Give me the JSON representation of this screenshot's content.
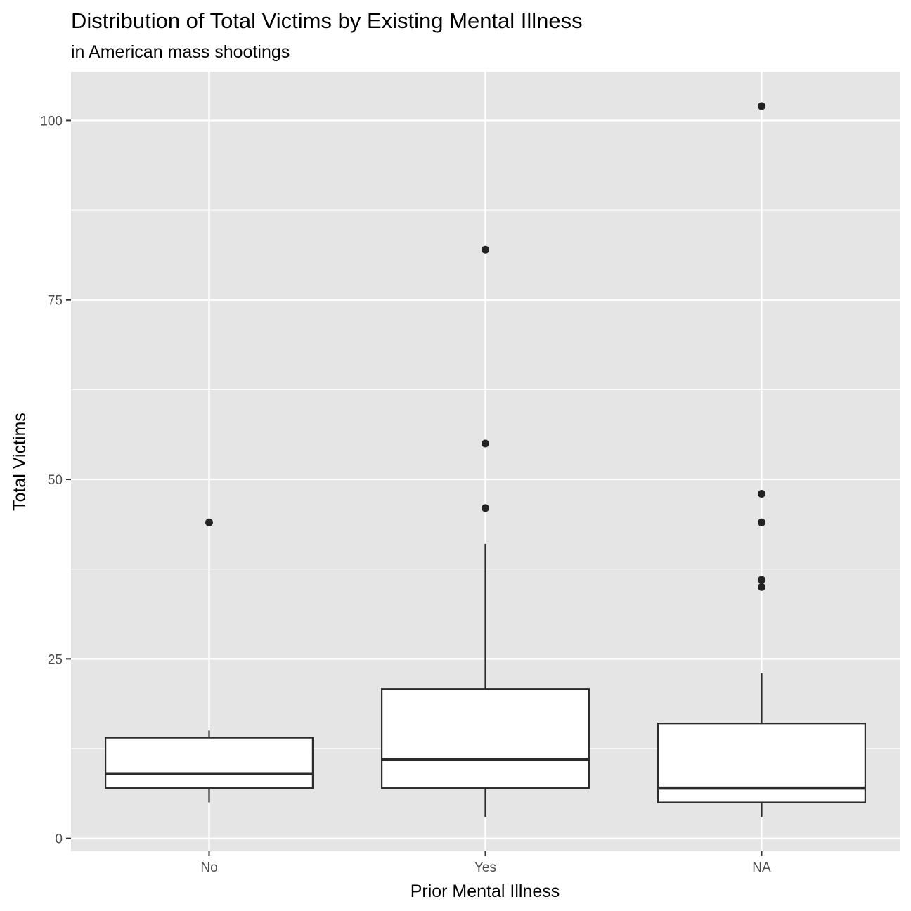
{
  "chart_data": {
    "type": "boxplot",
    "title": "Distribution of Total Victims by Existing Mental Illness",
    "subtitle": "in American mass shootings",
    "xlabel": "Prior Mental Illness",
    "ylabel": "Total Victims",
    "categories": [
      "No",
      "Yes",
      "NA"
    ],
    "ylim": [
      -1.8,
      106.8
    ],
    "yticks": [
      0,
      25,
      50,
      75,
      100
    ],
    "grid": true,
    "legend": "none",
    "colors": {
      "panel": "#e5e5e5",
      "grid": "#ffffff",
      "box_fill": "#ffffff",
      "box_line": "#2b2b2b",
      "outlier": "#222222",
      "tick": "#333333"
    },
    "boxes": [
      {
        "category": "No",
        "min": 5,
        "q1": 7,
        "median": 9,
        "q3": 14,
        "max": 15,
        "outliers": [
          44
        ]
      },
      {
        "category": "Yes",
        "min": 3,
        "q1": 7,
        "median": 11,
        "q3": 20.8,
        "max": 41,
        "outliers": [
          46,
          55,
          82
        ]
      },
      {
        "category": "NA",
        "min": 3,
        "q1": 5,
        "median": 7,
        "q3": 16,
        "max": 23,
        "outliers": [
          35,
          36,
          44,
          48,
          102
        ]
      }
    ]
  }
}
